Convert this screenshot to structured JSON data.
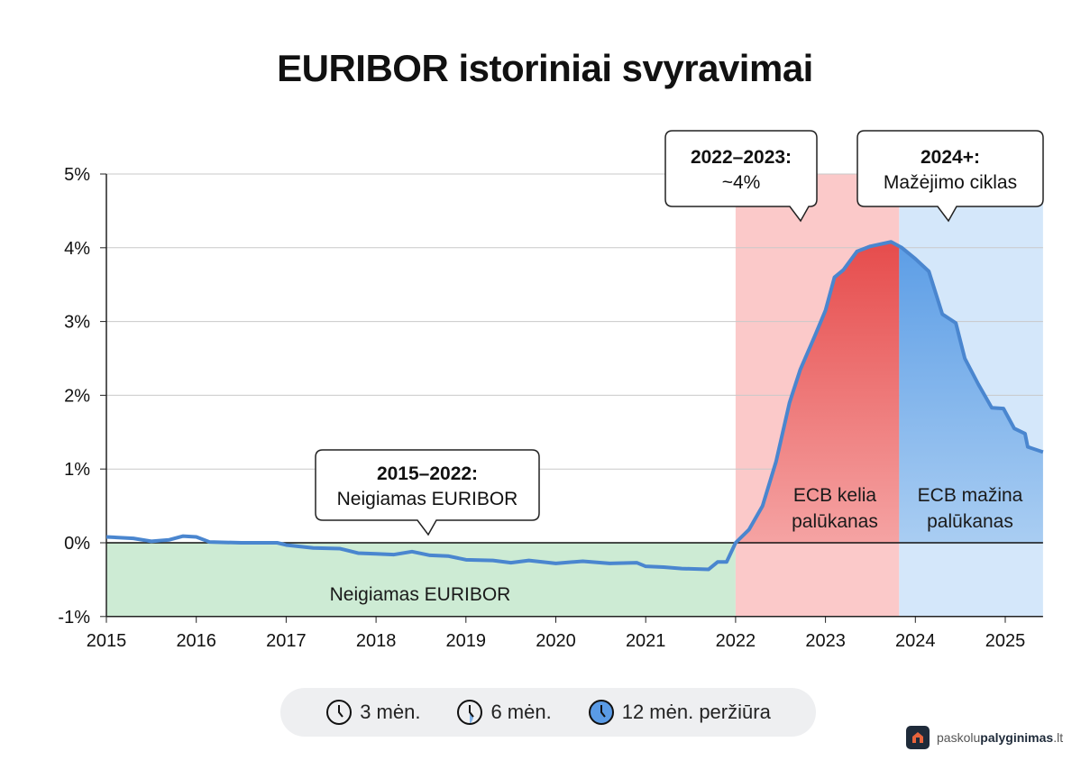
{
  "chart_data": {
    "type": "line",
    "title": "EURIBOR istoriniai svyravimai",
    "xlabel": "",
    "ylabel": "",
    "xlim": [
      2015,
      2025.42
    ],
    "ylim": [
      -1,
      5
    ],
    "x_ticks": [
      "2015",
      "2016",
      "2017",
      "2018",
      "2019",
      "2020",
      "2021",
      "2022",
      "2023",
      "2024",
      "2025"
    ],
    "y_ticks": [
      "-1%",
      "0%",
      "1%",
      "2%",
      "3%",
      "4%",
      "5%"
    ],
    "grid": true,
    "series": [
      {
        "color": "#4a86cf",
        "points": [
          [
            2015.0,
            0.08
          ],
          [
            2015.3,
            0.06
          ],
          [
            2015.5,
            0.02
          ],
          [
            2015.7,
            0.04
          ],
          [
            2015.85,
            0.09
          ],
          [
            2016.0,
            0.08
          ],
          [
            2016.15,
            0.01
          ],
          [
            2016.5,
            0.0
          ],
          [
            2016.9,
            0.0
          ],
          [
            2017.0,
            -0.03
          ],
          [
            2017.3,
            -0.07
          ],
          [
            2017.6,
            -0.08
          ],
          [
            2017.8,
            -0.14
          ],
          [
            2018.0,
            -0.15
          ],
          [
            2018.2,
            -0.16
          ],
          [
            2018.4,
            -0.12
          ],
          [
            2018.6,
            -0.17
          ],
          [
            2018.8,
            -0.18
          ],
          [
            2019.0,
            -0.23
          ],
          [
            2019.3,
            -0.24
          ],
          [
            2019.5,
            -0.27
          ],
          [
            2019.7,
            -0.24
          ],
          [
            2020.0,
            -0.28
          ],
          [
            2020.3,
            -0.25
          ],
          [
            2020.6,
            -0.28
          ],
          [
            2020.9,
            -0.27
          ],
          [
            2021.0,
            -0.32
          ],
          [
            2021.2,
            -0.33
          ],
          [
            2021.4,
            -0.35
          ],
          [
            2021.7,
            -0.36
          ],
          [
            2021.8,
            -0.26
          ],
          [
            2021.9,
            -0.26
          ],
          [
            2022.0,
            0.0
          ],
          [
            2022.15,
            0.18
          ],
          [
            2022.3,
            0.5
          ],
          [
            2022.45,
            1.1
          ],
          [
            2022.6,
            1.9
          ],
          [
            2022.72,
            2.35
          ],
          [
            2022.88,
            2.8
          ],
          [
            2023.0,
            3.15
          ],
          [
            2023.1,
            3.6
          ],
          [
            2023.2,
            3.7
          ],
          [
            2023.35,
            3.95
          ],
          [
            2023.5,
            4.02
          ],
          [
            2023.73,
            4.08
          ],
          [
            2023.85,
            4.0
          ],
          [
            2024.0,
            3.85
          ],
          [
            2024.15,
            3.68
          ],
          [
            2024.3,
            3.1
          ],
          [
            2024.45,
            2.98
          ],
          [
            2024.55,
            2.5
          ],
          [
            2024.7,
            2.15
          ],
          [
            2024.85,
            1.83
          ],
          [
            2024.98,
            1.82
          ],
          [
            2025.1,
            1.55
          ],
          [
            2025.22,
            1.48
          ],
          [
            2025.25,
            1.3
          ],
          [
            2025.42,
            1.23
          ]
        ]
      }
    ],
    "regions": [
      {
        "from": 2015,
        "to": 2022,
        "ymin": -1,
        "ymax": 0,
        "color": "#cdebd4",
        "label": "Neigiamas EURIBOR"
      },
      {
        "from": 2022,
        "to": 2023.82,
        "ymin": -1,
        "ymax": 5,
        "color": "#fbc9c9",
        "label": "ECB kelia palūkanas",
        "fill": "#e85a5a"
      },
      {
        "from": 2023.82,
        "to": 2025.42,
        "ymin": -1,
        "ymax": 5,
        "color": "#d4e7fa",
        "label": "ECB mažina palūkanas",
        "fill": "#7fb2e8"
      }
    ],
    "annotations": [
      {
        "bold": "2015–2022:",
        "text": "Neigiamas EURIBOR"
      },
      {
        "bold": "2022–2023:",
        "text": "~4%"
      },
      {
        "bold": "2024+:",
        "text": "Mažėjimo ciklas"
      }
    ]
  },
  "legend": [
    {
      "icon": "clock-outline-icon",
      "label": "3 mėn."
    },
    {
      "icon": "clock-half-filled-icon",
      "label": "6 mėn."
    },
    {
      "icon": "clock-filled-icon",
      "label": "12 mėn. peržiūra"
    }
  ],
  "brand": {
    "prefix": "paskolu",
    "bold": "palyginimas",
    "suffix": ".lt"
  }
}
